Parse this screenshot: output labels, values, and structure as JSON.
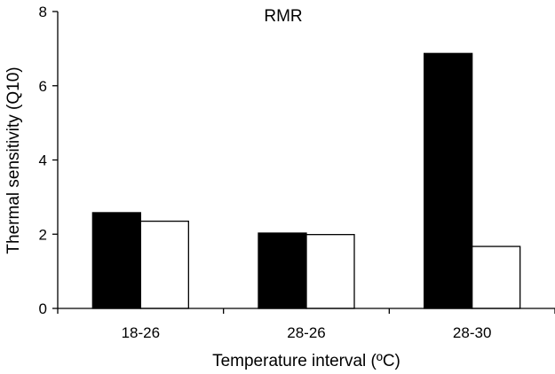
{
  "chart_data": {
    "type": "bar",
    "title": "RMR",
    "xlabel": "Temperature interval (ºC)",
    "ylabel": "Thermal sensitivity (Q10)",
    "categories": [
      "18-26",
      "28-26",
      "28-30"
    ],
    "series": [
      {
        "values": [
          2.58,
          2.03,
          6.87
        ],
        "color": "#000000"
      },
      {
        "values": [
          2.35,
          1.99,
          1.67
        ],
        "color": "#ffffff"
      }
    ],
    "ylim": [
      0,
      8
    ],
    "yticks": [
      "0",
      "2",
      "4",
      "6",
      "8"
    ],
    "grid": false
  }
}
